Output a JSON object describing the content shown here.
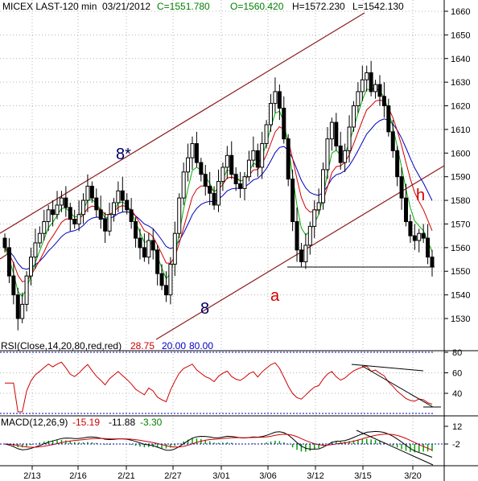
{
  "header": {
    "symbol_label": "MICEX LAST-120 min",
    "date_label": "03/21/2012",
    "close_label": "C=1551.780",
    "open_label": "O=1560.420",
    "high_label": "H=1572.230",
    "low_label": "L=1542.130"
  },
  "colors": {
    "background": "#ffffff",
    "grid": "#b0b0b0",
    "candle": "#000000",
    "ma_green": "#00b000",
    "ma_red": "#d00000",
    "ma_blue": "#0000c0",
    "channel": "#8b1a1a",
    "rsi_line": "#d00000",
    "rsi_bounds": "#0000c0",
    "macd_hist": "#00a000",
    "text_green": "#008000",
    "text_red": "#c00000",
    "text_blue": "#0000c0",
    "wave_dark": "#000060"
  },
  "annotations": {
    "wave_8star": "8*",
    "wave_8": "8",
    "wave_a": "a",
    "wave_h": "h"
  },
  "rsi": {
    "title": "RSI(Close,14,20,80,red,red)",
    "value": "28.75",
    "low": "20.00",
    "high": "80.00",
    "ticks": [
      "80",
      "60",
      "40"
    ]
  },
  "macd": {
    "title": "MACD(12,26,9)",
    "v1": "-15.19",
    "v2": "-11.88",
    "v3": "-3.30",
    "ticks": [
      "12",
      "-2"
    ]
  },
  "chart_data": {
    "type": "candlestick",
    "title": "MICEX LAST-120 min",
    "y_ticks": [
      1530,
      1540,
      1550,
      1560,
      1570,
      1580,
      1590,
      1600,
      1610,
      1620,
      1630,
      1640,
      1650,
      1660
    ],
    "x_ticks": [
      "2/13",
      "2/16",
      "2/21",
      "2/27",
      "3/01",
      "3/06",
      "3/12",
      "3/15",
      "3/20"
    ],
    "ylim": [
      1522,
      1663
    ],
    "grid": true,
    "closes": [
      1560,
      1548,
      1540,
      1530,
      1536,
      1548,
      1556,
      1562,
      1566,
      1571,
      1576,
      1574,
      1578,
      1581,
      1577,
      1572,
      1570,
      1574,
      1580,
      1586,
      1581,
      1576,
      1572,
      1567,
      1574,
      1579,
      1584,
      1580,
      1576,
      1571,
      1564,
      1560,
      1556,
      1563,
      1559,
      1549,
      1544,
      1540,
      1553,
      1566,
      1581,
      1592,
      1598,
      1604,
      1596,
      1591,
      1586,
      1583,
      1578,
      1588,
      1594,
      1599,
      1591,
      1587,
      1585,
      1590,
      1597,
      1601,
      1594,
      1604,
      1612,
      1621,
      1626,
      1619,
      1606,
      1589,
      1571,
      1559,
      1554,
      1561,
      1569,
      1576,
      1579,
      1593,
      1606,
      1613,
      1603,
      1596,
      1601,
      1611,
      1620,
      1626,
      1631,
      1634,
      1626,
      1629,
      1624,
      1620,
      1609,
      1601,
      1590,
      1581,
      1571,
      1565,
      1563,
      1566,
      1564,
      1556,
      1551.78
    ],
    "support_level": 1552,
    "rsi_range": [
      0,
      100
    ],
    "macd_range": [
      -24,
      16
    ]
  }
}
